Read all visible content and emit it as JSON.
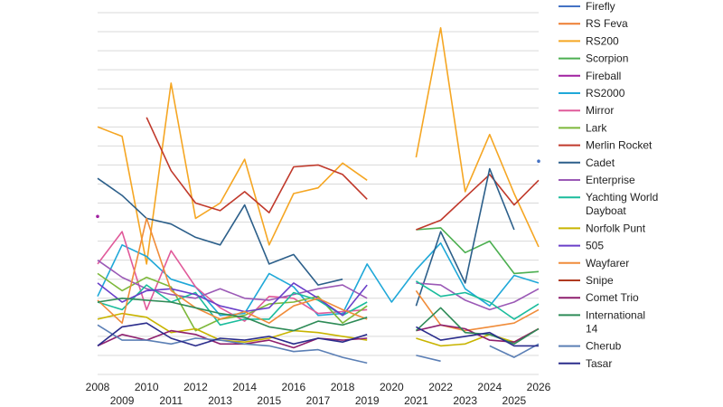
{
  "chart_data": {
    "type": "line",
    "title": "",
    "xlabel": "",
    "ylabel": "",
    "x": [
      2008,
      2009,
      2010,
      2011,
      2012,
      2013,
      2014,
      2015,
      2016,
      2017,
      2018,
      2019,
      2020,
      2021,
      2022,
      2023,
      2024,
      2025,
      2026
    ],
    "tick_labels": [
      "2008",
      "2009",
      "2010",
      "2011",
      "2012",
      "2013",
      "2014",
      "2015",
      "2016",
      "2017",
      "2018",
      "2019",
      "2020",
      "2021",
      "2022",
      "2023",
      "2024",
      "2025",
      "2026"
    ],
    "ylim": [
      0,
      19
    ],
    "grid": "horizontal",
    "legend": "right",
    "series": [
      {
        "name": "Firefly",
        "color": "#4472c4",
        "values": [
          null,
          null,
          null,
          null,
          null,
          null,
          null,
          null,
          null,
          null,
          null,
          null,
          null,
          null,
          null,
          null,
          null,
          null,
          11.2
        ]
      },
      {
        "name": "RS Feva",
        "color": "#ed7d31",
        "values": [
          null,
          null,
          null,
          null,
          null,
          null,
          null,
          null,
          null,
          null,
          null,
          null,
          null,
          null,
          null,
          null,
          null,
          null,
          null
        ]
      },
      {
        "name": "RS200",
        "color": "#f5a623",
        "values": [
          13.0,
          12.5,
          5.8,
          15.3,
          8.2,
          9.0,
          11.3,
          6.8,
          9.5,
          9.8,
          11.1,
          10.2,
          null,
          11.4,
          18.2,
          9.6,
          12.6,
          9.5,
          6.7
        ]
      },
      {
        "name": "Scorpion",
        "color": "#4caf50",
        "values": [
          null,
          null,
          null,
          null,
          null,
          null,
          null,
          null,
          null,
          null,
          null,
          null,
          null,
          7.6,
          7.7,
          6.4,
          7.0,
          5.3,
          5.4
        ]
      },
      {
        "name": "Fireball",
        "color": "#a020a0",
        "values": [
          8.3,
          null,
          null,
          null,
          null,
          null,
          null,
          null,
          null,
          null,
          null,
          null,
          null,
          null,
          null,
          null,
          null,
          null,
          null
        ]
      },
      {
        "name": "RS2000",
        "color": "#1fa8d8",
        "values": [
          4.1,
          6.8,
          6.2,
          5.0,
          4.6,
          3.1,
          3.2,
          5.3,
          4.6,
          3.1,
          3.2,
          5.8,
          3.8,
          5.5,
          6.9,
          4.5,
          3.6,
          5.2,
          4.8
        ]
      },
      {
        "name": "Mirror",
        "color": "#e05a9a",
        "values": [
          5.8,
          7.5,
          3.4,
          6.5,
          4.6,
          3.5,
          2.8,
          4.1,
          4.0,
          3.2,
          3.3,
          3.4,
          null,
          null,
          null,
          null,
          null,
          null,
          null
        ]
      },
      {
        "name": "Lark",
        "color": "#7db83a",
        "values": [
          5.3,
          4.4,
          5.1,
          4.6,
          2.3,
          2.9,
          3.1,
          3.7,
          3.8,
          4.1,
          2.7,
          3.6,
          null,
          null,
          null,
          null,
          null,
          null,
          null
        ]
      },
      {
        "name": "Merlin Rocket",
        "color": "#c0392b",
        "values": [
          null,
          null,
          13.5,
          10.7,
          9.0,
          8.6,
          9.6,
          8.5,
          10.9,
          11.0,
          10.5,
          9.2,
          null,
          7.6,
          8.1,
          9.3,
          10.5,
          8.9,
          10.2
        ]
      },
      {
        "name": "Cadet",
        "color": "#2c5f8a",
        "values": [
          10.3,
          9.4,
          8.2,
          7.9,
          7.2,
          6.8,
          8.9,
          5.8,
          6.3,
          4.7,
          5.0,
          null,
          null,
          3.6,
          7.5,
          4.8,
          10.8,
          7.6,
          null
        ]
      },
      {
        "name": "Enterprise",
        "color": "#9b59b6",
        "values": [
          6.0,
          5.1,
          4.5,
          4.2,
          4.0,
          4.5,
          4.0,
          3.9,
          4.2,
          4.5,
          4.7,
          4.0,
          null,
          4.8,
          4.7,
          3.9,
          3.4,
          3.8,
          4.5
        ]
      },
      {
        "name": "Yachting World Dayboat",
        "color": "#1abc9c",
        "values": [
          3.8,
          3.4,
          4.7,
          3.8,
          4.3,
          2.6,
          2.9,
          2.9,
          4.3,
          3.9,
          3.1,
          3.8,
          null,
          4.9,
          4.1,
          4.3,
          3.8,
          2.9,
          3.7
        ]
      },
      {
        "name": "Norfolk Punt",
        "color": "#c8b400",
        "values": [
          2.9,
          3.2,
          3.0,
          2.2,
          2.4,
          1.8,
          1.7,
          1.9,
          2.3,
          2.2,
          2.0,
          1.8,
          null,
          1.9,
          1.5,
          1.6,
          2.1,
          1.7,
          2.4
        ]
      },
      {
        "name": "505",
        "color": "#6a3fc9",
        "values": [
          4.8,
          3.8,
          4.4,
          4.5,
          4.2,
          3.6,
          3.3,
          3.5,
          4.8,
          4.0,
          3.1,
          4.7,
          null,
          null,
          null,
          null,
          null,
          null,
          null
        ]
      },
      {
        "name": "Wayfarer",
        "color": "#f08c3a",
        "values": [
          3.9,
          2.7,
          8.2,
          4.4,
          3.5,
          2.9,
          3.3,
          2.7,
          3.6,
          4.0,
          3.4,
          2.9,
          null,
          4.4,
          2.6,
          2.3,
          2.5,
          2.7,
          3.4
        ]
      },
      {
        "name": "Snipe",
        "color": "#b03a20",
        "values": [
          null,
          null,
          null,
          null,
          null,
          null,
          null,
          null,
          null,
          null,
          null,
          null,
          null,
          null,
          null,
          null,
          null,
          null,
          null
        ]
      },
      {
        "name": "Comet Trio",
        "color": "#8e1f6e",
        "values": [
          1.5,
          2.1,
          1.8,
          2.3,
          2.1,
          1.6,
          1.6,
          1.8,
          1.4,
          1.9,
          1.8,
          1.9,
          null,
          2.3,
          2.6,
          2.4,
          1.8,
          1.7,
          2.4
        ]
      },
      {
        "name": "International 14",
        "color": "#2e8b57",
        "values": [
          3.8,
          4.0,
          3.9,
          3.8,
          3.5,
          3.2,
          3.0,
          2.5,
          2.3,
          2.8,
          2.6,
          3.0,
          null,
          2.3,
          3.5,
          2.2,
          2.1,
          1.6,
          2.4
        ]
      },
      {
        "name": "Cherub",
        "color": "#5b7fb5",
        "values": [
          2.6,
          1.8,
          1.8,
          1.6,
          1.9,
          1.8,
          1.6,
          1.5,
          1.2,
          1.3,
          0.9,
          0.6,
          null,
          1.0,
          0.7,
          null,
          1.5,
          0.9,
          1.6
        ]
      },
      {
        "name": "Tasar",
        "color": "#2b2d8c",
        "values": [
          1.5,
          2.5,
          2.7,
          1.9,
          1.5,
          1.9,
          1.8,
          2.0,
          1.6,
          1.9,
          1.7,
          2.1,
          null,
          2.5,
          1.8,
          2.0,
          2.2,
          1.5,
          1.5
        ]
      }
    ]
  }
}
